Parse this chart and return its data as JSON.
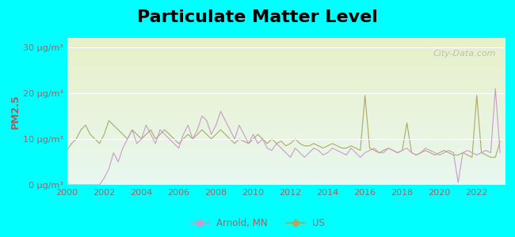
{
  "title": "Particulate Matter Level",
  "ylabel": "PM2.5",
  "ylim": [
    0,
    32
  ],
  "yticks": [
    0,
    10,
    20,
    30
  ],
  "ytick_labels": [
    "0 μg/m³",
    "10 μg/m³",
    "20 μg/m³",
    "30 μg/m³"
  ],
  "xlim": [
    2000,
    2023.5
  ],
  "xticks": [
    2000,
    2002,
    2004,
    2006,
    2008,
    2010,
    2012,
    2014,
    2016,
    2018,
    2020,
    2022
  ],
  "background_outer": "#00ffff",
  "background_inner_top": "#e8f8f0",
  "background_inner_bottom": "#e8f0c8",
  "arnold_color": "#cc99cc",
  "us_color": "#aaaa66",
  "arnold_label": "Arnold, MN",
  "us_label": "US",
  "title_fontsize": 16,
  "axis_label_color": "#996666",
  "tick_label_color": "#996666",
  "watermark": "City-Data.com",
  "arnold_data_x": [
    2000.0,
    2000.25,
    2000.5,
    2000.75,
    2001.0,
    2001.25,
    2001.5,
    2001.75,
    2002.0,
    2002.25,
    2002.5,
    2002.75,
    2003.0,
    2003.25,
    2003.5,
    2003.75,
    2004.0,
    2004.25,
    2004.5,
    2004.75,
    2005.0,
    2005.25,
    2005.5,
    2005.75,
    2006.0,
    2006.25,
    2006.5,
    2006.75,
    2007.0,
    2007.25,
    2007.5,
    2007.75,
    2008.0,
    2008.25,
    2008.5,
    2008.75,
    2009.0,
    2009.25,
    2009.5,
    2009.75,
    2010.0,
    2010.25,
    2010.5,
    2010.75,
    2011.0,
    2011.25,
    2011.5,
    2011.75,
    2012.0,
    2012.25,
    2012.5,
    2012.75,
    2013.0,
    2013.25,
    2013.5,
    2013.75,
    2014.0,
    2014.25,
    2014.5,
    2014.75,
    2015.0,
    2015.25,
    2015.5,
    2015.75,
    2016.0,
    2016.25,
    2016.5,
    2016.75,
    2017.0,
    2017.25,
    2017.5,
    2017.75,
    2018.0,
    2018.25,
    2018.5,
    2018.75,
    2019.0,
    2019.25,
    2019.5,
    2019.75,
    2020.0,
    2020.25,
    2020.5,
    2020.75,
    2021.0,
    2021.25,
    2021.5,
    2021.75,
    2022.0,
    2022.25,
    2022.5,
    2022.75,
    2023.0,
    2023.25
  ],
  "arnold_data_y": [
    0.0,
    0.0,
    0.0,
    0.0,
    0.0,
    0.0,
    0.0,
    0.0,
    1.5,
    3.5,
    7.0,
    5.0,
    8.0,
    10.0,
    12.0,
    9.0,
    10.0,
    13.0,
    11.0,
    9.0,
    12.0,
    11.0,
    10.0,
    9.0,
    8.0,
    11.0,
    13.0,
    10.0,
    12.0,
    15.0,
    14.0,
    11.0,
    13.0,
    16.0,
    14.0,
    12.0,
    10.0,
    13.0,
    11.0,
    9.0,
    11.0,
    9.0,
    10.0,
    8.0,
    7.5,
    9.0,
    8.0,
    7.0,
    6.0,
    8.0,
    7.0,
    6.0,
    7.0,
    8.0,
    7.5,
    6.5,
    7.0,
    8.0,
    7.5,
    7.0,
    6.5,
    8.0,
    7.0,
    6.0,
    7.0,
    7.5,
    8.0,
    7.0,
    7.0,
    8.0,
    7.5,
    7.0,
    7.5,
    8.0,
    7.0,
    6.5,
    7.0,
    8.0,
    7.5,
    7.0,
    6.5,
    7.0,
    7.5,
    7.0,
    0.5,
    7.0,
    7.5,
    7.0,
    6.5,
    7.0,
    7.5,
    7.0,
    21.0,
    7.0
  ],
  "us_data_x": [
    2000.0,
    2000.25,
    2000.5,
    2000.75,
    2001.0,
    2001.25,
    2001.5,
    2001.75,
    2002.0,
    2002.25,
    2002.5,
    2002.75,
    2003.0,
    2003.25,
    2003.5,
    2003.75,
    2004.0,
    2004.25,
    2004.5,
    2004.75,
    2005.0,
    2005.25,
    2005.5,
    2005.75,
    2006.0,
    2006.25,
    2006.5,
    2006.75,
    2007.0,
    2007.25,
    2007.5,
    2007.75,
    2008.0,
    2008.25,
    2008.5,
    2008.75,
    2009.0,
    2009.25,
    2009.5,
    2009.75,
    2010.0,
    2010.25,
    2010.5,
    2010.75,
    2011.0,
    2011.25,
    2011.5,
    2011.75,
    2012.0,
    2012.25,
    2012.5,
    2012.75,
    2013.0,
    2013.25,
    2013.5,
    2013.75,
    2014.0,
    2014.25,
    2014.5,
    2014.75,
    2015.0,
    2015.25,
    2015.5,
    2015.75,
    2016.0,
    2016.25,
    2016.5,
    2016.75,
    2017.0,
    2017.25,
    2017.5,
    2017.75,
    2018.0,
    2018.25,
    2018.5,
    2018.75,
    2019.0,
    2019.25,
    2019.5,
    2019.75,
    2020.0,
    2020.25,
    2020.5,
    2020.75,
    2021.0,
    2021.25,
    2021.5,
    2021.75,
    2022.0,
    2022.25,
    2022.5,
    2022.75,
    2023.0,
    2023.25
  ],
  "us_data_y": [
    7.5,
    9.0,
    10.0,
    12.0,
    13.0,
    11.0,
    10.0,
    9.0,
    11.0,
    14.0,
    13.0,
    12.0,
    11.0,
    10.0,
    12.0,
    11.0,
    10.0,
    11.0,
    12.0,
    10.0,
    11.0,
    12.0,
    11.0,
    10.0,
    9.0,
    10.0,
    11.0,
    10.0,
    11.0,
    12.0,
    11.0,
    10.0,
    11.0,
    12.0,
    11.0,
    10.0,
    9.0,
    10.0,
    9.5,
    9.0,
    10.0,
    11.0,
    10.0,
    9.0,
    10.0,
    9.0,
    9.5,
    8.5,
    9.0,
    10.0,
    9.0,
    8.5,
    8.5,
    9.0,
    8.5,
    8.0,
    8.5,
    9.0,
    8.5,
    8.0,
    8.0,
    8.5,
    8.0,
    7.5,
    19.5,
    8.0,
    7.5,
    7.0,
    7.5,
    8.0,
    7.5,
    7.0,
    7.5,
    13.5,
    7.0,
    6.5,
    7.0,
    7.5,
    7.0,
    6.5,
    7.0,
    7.5,
    7.0,
    6.5,
    6.5,
    7.0,
    6.5,
    6.0,
    19.5,
    7.0,
    6.5,
    6.0,
    6.0,
    9.5
  ]
}
